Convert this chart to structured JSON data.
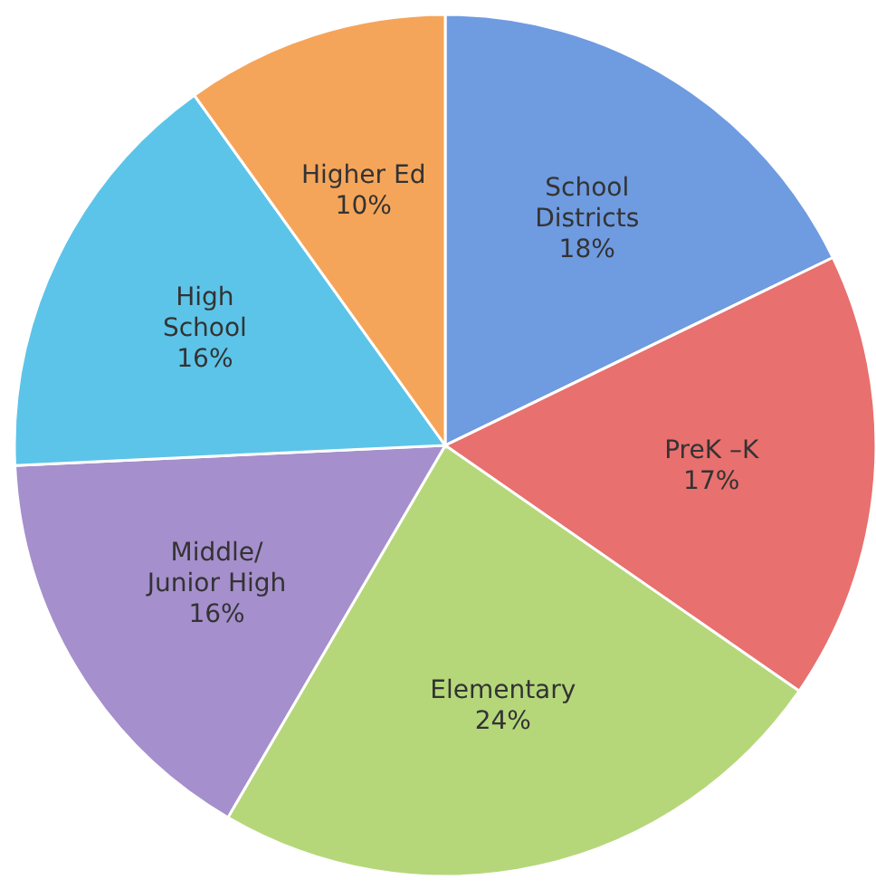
{
  "chart_data": {
    "type": "pie",
    "categories": [
      "School\nDistricts",
      "PreK –K",
      "Elementary",
      "Middle/\nJunior High",
      "High\nSchool",
      "Higher Ed"
    ],
    "values": [
      18,
      17,
      24,
      16,
      16,
      10
    ],
    "value_labels": [
      "18%",
      "17%",
      "24%",
      "16%",
      "16%",
      "10%"
    ],
    "colors": [
      "#6f9be0",
      "#e8706e",
      "#b5d77a",
      "#a58fcc",
      "#5cc4e8",
      "#f5a55a"
    ]
  }
}
